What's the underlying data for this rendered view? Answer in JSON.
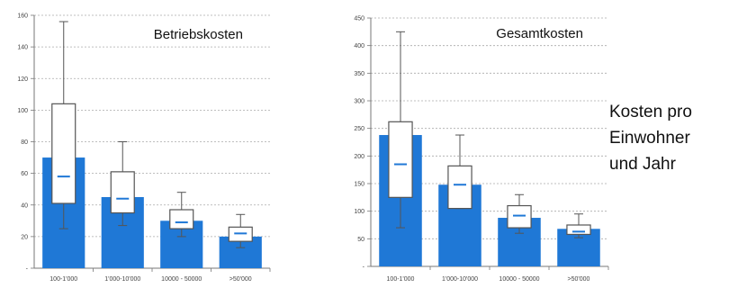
{
  "side_caption": {
    "line1": "Kosten pro",
    "line2": "Einwohner",
    "line3": "und Jahr"
  },
  "colors": {
    "bar": "#1f78d6",
    "box_fill": "#ffffff",
    "box_stroke": "#555555",
    "median": "#1f78d6",
    "axis": "#777777",
    "grid": "#aaaaaa"
  },
  "chart_data": [
    {
      "type": "bar",
      "title": "Betriebskosten",
      "categories": [
        "100-1'000",
        "1'000-10'000",
        "10000 - 50000",
        ">50'000"
      ],
      "ylim": [
        0,
        160
      ],
      "yticks": [
        "-",
        "20",
        "40",
        "60",
        "80",
        "100",
        "120",
        "140",
        "160"
      ],
      "grid": true,
      "series": [
        {
          "kind": "bar",
          "values": [
            70,
            45,
            30,
            20
          ]
        },
        {
          "kind": "boxplot",
          "q1": [
            41,
            35,
            25,
            17
          ],
          "median": [
            58,
            44,
            29,
            22
          ],
          "q3": [
            104,
            61,
            37,
            26
          ],
          "min": [
            25,
            27,
            20,
            13
          ],
          "max": [
            156,
            80,
            48,
            34
          ]
        }
      ]
    },
    {
      "type": "bar",
      "title": "Gesamtkosten",
      "categories": [
        "100-1'000",
        "1'000-10'000",
        "10000 - 50000",
        ">50'000"
      ],
      "ylim": [
        0,
        450
      ],
      "yticks": [
        "-",
        "50",
        "100",
        "150",
        "200",
        "250",
        "300",
        "350",
        "400",
        "450"
      ],
      "grid": true,
      "series": [
        {
          "kind": "bar",
          "values": [
            238,
            148,
            88,
            68
          ]
        },
        {
          "kind": "boxplot",
          "q1": [
            125,
            105,
            70,
            58
          ],
          "median": [
            185,
            148,
            92,
            63
          ],
          "q3": [
            262,
            182,
            110,
            75
          ],
          "min": [
            70,
            105,
            60,
            52
          ],
          "max": [
            425,
            238,
            130,
            95
          ]
        }
      ]
    }
  ]
}
